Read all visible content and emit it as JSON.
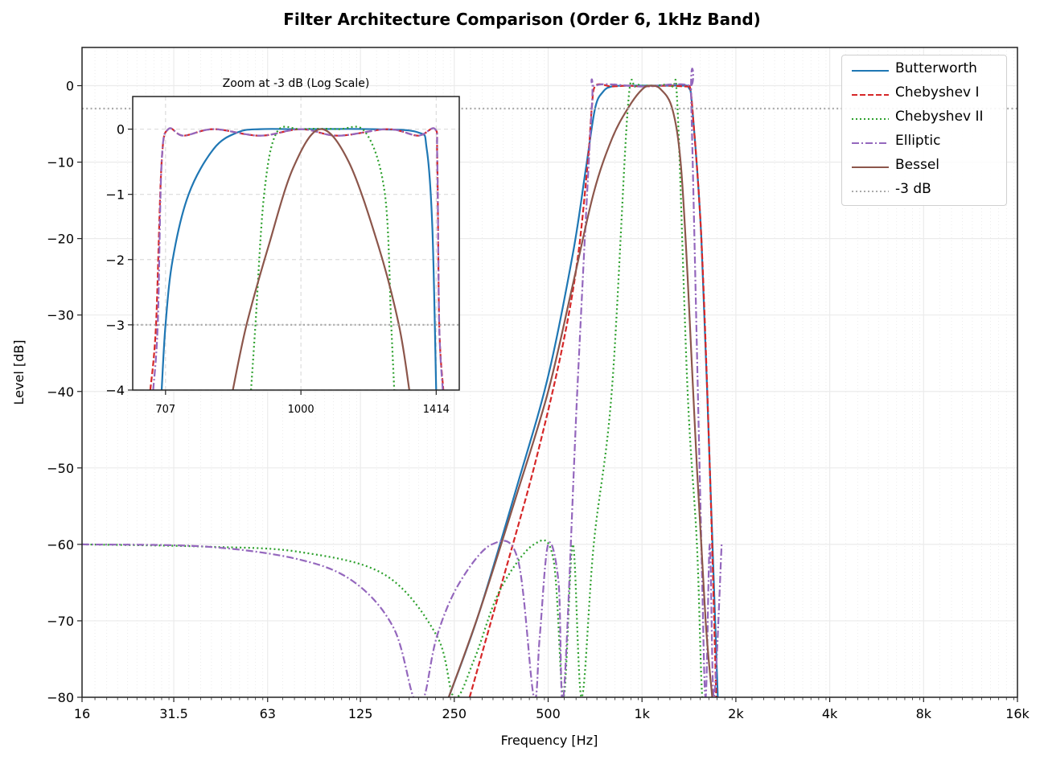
{
  "title": "Filter Architecture Comparison (Order 6, 1kHz Band)",
  "colors": {
    "butterworth": "#1f77b4",
    "chebyshev1": "#d62728",
    "chebyshev2": "#2ca02c",
    "elliptic": "#9467bd",
    "bessel": "#8c564b",
    "ref": "#aaaaaa"
  },
  "chart_data": [
    {
      "type": "line",
      "title": "Filter Architecture Comparison (Order 6, 1kHz Band)",
      "xlabel": "Frequency [Hz]",
      "ylabel": "Level [dB]",
      "xscale": "log2",
      "xlim": [
        16,
        16000
      ],
      "ylim": [
        -80,
        5
      ],
      "xticks": [
        16,
        31.5,
        63,
        125,
        250,
        500,
        1000,
        2000,
        4000,
        8000,
        16000
      ],
      "xtick_labels": [
        "16",
        "31.5",
        "63",
        "125",
        "250",
        "500",
        "1k",
        "2k",
        "4k",
        "8k",
        "16k"
      ],
      "yticks": [
        0,
        -10,
        -20,
        -30,
        -40,
        -50,
        -60,
        -70,
        -80
      ],
      "ytick_labels": [
        "0",
        "−10",
        "−20",
        "−30",
        "−40",
        "−50",
        "−60",
        "−70",
        "−80"
      ],
      "grid": true,
      "legend_position": "upper right",
      "legend": [
        "Butterworth",
        "Chebyshev I",
        "Chebyshev II",
        "Elliptic",
        "Bessel",
        "-3 dB"
      ],
      "series": [
        {
          "name": "Butterworth",
          "style": "solid",
          "x": [
            240,
            300,
            400,
            500,
            600,
            660,
            707,
            750,
            800,
            900,
            1000,
            1200,
            1350,
            1414,
            1450,
            1550,
            1650,
            1750
          ],
          "y": [
            -80,
            -69,
            -52,
            -38,
            -22,
            -11,
            -3,
            -0.8,
            -0.1,
            0,
            0,
            0,
            0,
            -0.3,
            -3,
            -20,
            -50,
            -80
          ]
        },
        {
          "name": "Chebyshev I",
          "style": "dashed",
          "x": [
            280,
            350,
            450,
            550,
            620,
            670,
            690,
            710,
            800,
            900,
            1000,
            1200,
            1400,
            1420,
            1450,
            1550,
            1650,
            1730
          ],
          "y": [
            -80,
            -66,
            -50,
            -35,
            -23,
            -10,
            -3,
            0,
            -0.1,
            0,
            -0.1,
            0,
            -0.1,
            0,
            -3,
            -20,
            -50,
            -80
          ]
        },
        {
          "name": "Chebyshev II",
          "style": "dotted",
          "x": [
            16,
            40,
            80,
            150,
            220,
            250,
            290,
            350,
            450,
            520,
            560,
            600,
            640,
            700,
            800,
            900,
            950,
            1000,
            1100,
            1250,
            1300,
            1400,
            1500,
            1560,
            1620
          ],
          "y": [
            -60,
            -60.3,
            -61,
            -64,
            -72,
            -80,
            -75,
            -66,
            -60,
            -62,
            -80,
            -60,
            -80,
            -60,
            -40,
            -3,
            -0.1,
            0,
            0,
            -0.1,
            -3,
            -40,
            -60,
            -80,
            -80
          ]
        },
        {
          "name": "Elliptic",
          "style": "dashdot",
          "x": [
            16,
            40,
            80,
            120,
            160,
            185,
            200,
            220,
            260,
            330,
            400,
            450,
            470,
            500,
            540,
            560,
            620,
            690,
            710,
            1000,
            1420,
            1440,
            1550,
            1600,
            1650,
            1700,
            1800
          ],
          "y": [
            -60,
            -60.3,
            -62,
            -65,
            -71,
            -80,
            -80,
            -72,
            -65,
            -60,
            -62,
            -80,
            -72,
            -60,
            -65,
            -80,
            -40,
            -3,
            0,
            -0.1,
            0,
            -3,
            -60,
            -80,
            -60,
            -80,
            -60
          ]
        },
        {
          "name": "Bessel",
          "style": "solid",
          "x": [
            240,
            300,
            400,
            500,
            600,
            700,
            800,
            900,
            1000,
            1070,
            1150,
            1250,
            1330,
            1400,
            1500,
            1600,
            1680
          ],
          "y": [
            -80,
            -69,
            -53,
            -40,
            -26,
            -14,
            -7,
            -3,
            -0.5,
            0,
            -0.5,
            -3,
            -10,
            -25,
            -50,
            -70,
            -80
          ]
        },
        {
          "name": "-3 dB",
          "style": "dotted",
          "x": [
            16,
            16000
          ],
          "y": [
            -3,
            -3
          ]
        }
      ]
    },
    {
      "type": "line",
      "title": "Zoom at -3 dB (Log Scale)",
      "xscale": "log2",
      "xlim": [
        650,
        1500
      ],
      "ylim": [
        -4,
        0.5
      ],
      "xticks": [
        707,
        1000,
        1414
      ],
      "xtick_labels": [
        "707",
        "1000",
        "1414"
      ],
      "yticks": [
        0,
        -1,
        -2,
        -3,
        -4
      ],
      "ytick_labels": [
        "0",
        "−1",
        "−2",
        "−3",
        "−4"
      ],
      "grid": true,
      "series": [
        {
          "name": "Butterworth",
          "x": [
            700,
            707,
            720,
            750,
            800,
            850,
            900,
            1000,
            1200,
            1350,
            1380,
            1400,
            1414
          ],
          "y": [
            -4,
            -3,
            -2,
            -1,
            -0.3,
            -0.05,
            0,
            0,
            0,
            -0.05,
            -0.3,
            -1.5,
            -4
          ]
        },
        {
          "name": "Chebyshev I",
          "x": [
            680,
            690,
            700,
            712,
            740,
            800,
            900,
            1000,
            1100,
            1250,
            1350,
            1410,
            1418,
            1425,
            1440
          ],
          "y": [
            -4,
            -3,
            -0.5,
            0,
            -0.1,
            0,
            -0.1,
            0,
            -0.1,
            0,
            -0.1,
            0,
            -0.5,
            -3,
            -4
          ]
        },
        {
          "name": "Chebyshev II",
          "x": [
            880,
            890,
            910,
            940,
            1000,
            1100,
            1180,
            1240,
            1260,
            1270
          ],
          "y": [
            -4,
            -3,
            -1,
            -0.05,
            0,
            0,
            -0.05,
            -1,
            -3,
            -4
          ]
        },
        {
          "name": "Elliptic",
          "x": [
            685,
            693,
            700,
            712,
            740,
            800,
            900,
            1000,
            1100,
            1250,
            1350,
            1410,
            1418,
            1425,
            1438
          ],
          "y": [
            -4,
            -3,
            -0.5,
            0,
            -0.1,
            0,
            -0.1,
            0,
            -0.1,
            0,
            -0.1,
            0,
            -0.5,
            -3,
            -4
          ]
        },
        {
          "name": "Bessel",
          "x": [
            840,
            870,
            920,
            980,
            1050,
            1130,
            1220,
            1285,
            1320
          ],
          "y": [
            -4,
            -3,
            -1.8,
            -0.6,
            0,
            -0.5,
            -1.8,
            -3,
            -4
          ]
        },
        {
          "name": "-3 dB",
          "x": [
            650,
            1500
          ],
          "y": [
            -3,
            -3
          ]
        }
      ]
    }
  ],
  "axes": {
    "main": {
      "xlabel": "Frequency [Hz]",
      "ylabel": "Level [dB]"
    },
    "inset": {
      "title": "Zoom at -3 dB (Log Scale)"
    }
  },
  "legend": {
    "items": [
      {
        "label": "Butterworth",
        "color": "#1f77b4",
        "dash": ""
      },
      {
        "label": "Chebyshev I",
        "color": "#d62728",
        "dash": "7,3"
      },
      {
        "label": "Chebyshev II",
        "color": "#2ca02c",
        "dash": "2,3"
      },
      {
        "label": "Elliptic",
        "color": "#9467bd",
        "dash": "9,3,2,3"
      },
      {
        "label": "Bessel",
        "color": "#8c564b",
        "dash": ""
      },
      {
        "label": "-3 dB",
        "color": "#aaaaaa",
        "dash": "2,3"
      }
    ]
  }
}
